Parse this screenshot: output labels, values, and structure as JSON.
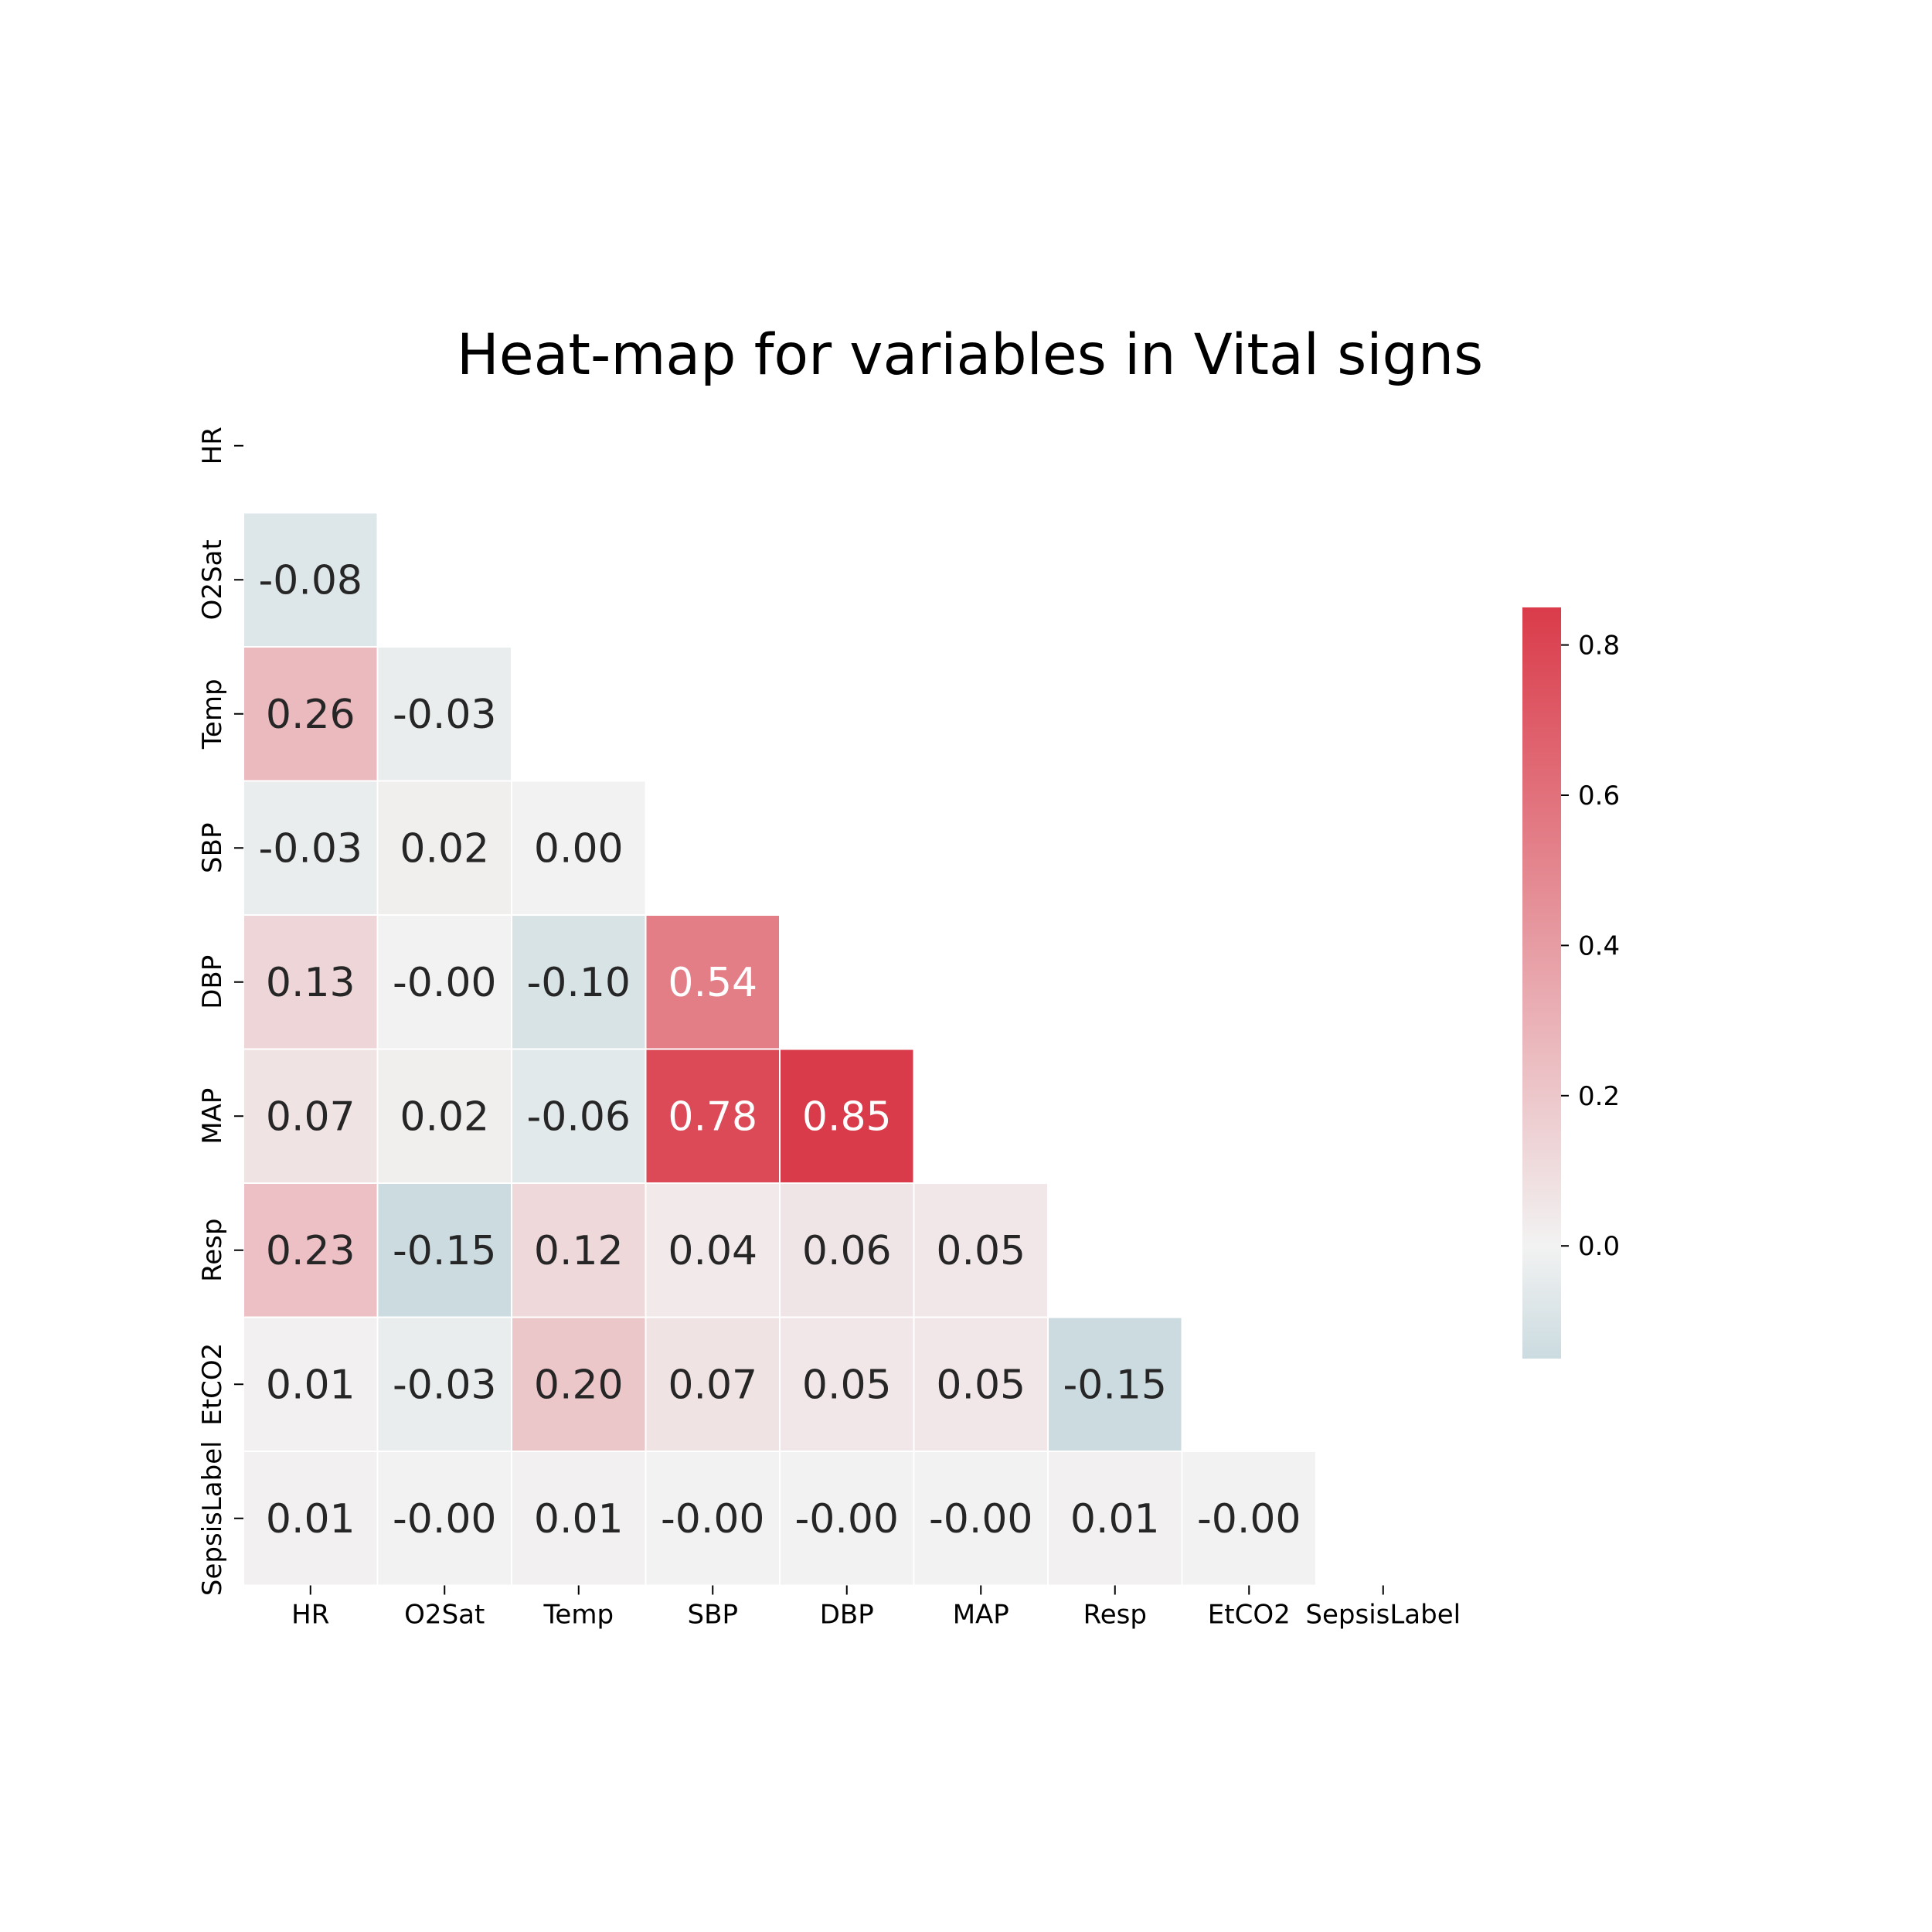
{
  "chart_data": {
    "type": "heatmap",
    "title": "Heat-map for variables in Vital signs",
    "variables": [
      "HR",
      "O2Sat",
      "Temp",
      "SBP",
      "DBP",
      "MAP",
      "Resp",
      "EtCO2",
      "SepsisLabel"
    ],
    "mask": "upper-triangle-including-diagonal",
    "cells": [
      {
        "row": "O2Sat",
        "col": "HR",
        "value": -0.08,
        "label": "-0.08"
      },
      {
        "row": "Temp",
        "col": "HR",
        "value": 0.26,
        "label": "0.26"
      },
      {
        "row": "Temp",
        "col": "O2Sat",
        "value": -0.03,
        "label": "-0.03"
      },
      {
        "row": "SBP",
        "col": "HR",
        "value": -0.03,
        "label": "-0.03"
      },
      {
        "row": "SBP",
        "col": "O2Sat",
        "value": 0.02,
        "label": "0.02"
      },
      {
        "row": "SBP",
        "col": "Temp",
        "value": 0.0,
        "label": "0.00"
      },
      {
        "row": "DBP",
        "col": "HR",
        "value": 0.13,
        "label": "0.13"
      },
      {
        "row": "DBP",
        "col": "O2Sat",
        "value": -0.0,
        "label": "-0.00"
      },
      {
        "row": "DBP",
        "col": "Temp",
        "value": -0.1,
        "label": "-0.10"
      },
      {
        "row": "DBP",
        "col": "SBP",
        "value": 0.54,
        "label": "0.54"
      },
      {
        "row": "MAP",
        "col": "HR",
        "value": 0.07,
        "label": "0.07"
      },
      {
        "row": "MAP",
        "col": "O2Sat",
        "value": 0.02,
        "label": "0.02"
      },
      {
        "row": "MAP",
        "col": "Temp",
        "value": -0.06,
        "label": "-0.06"
      },
      {
        "row": "MAP",
        "col": "SBP",
        "value": 0.78,
        "label": "0.78"
      },
      {
        "row": "MAP",
        "col": "DBP",
        "value": 0.85,
        "label": "0.85"
      },
      {
        "row": "Resp",
        "col": "HR",
        "value": 0.23,
        "label": "0.23"
      },
      {
        "row": "Resp",
        "col": "O2Sat",
        "value": -0.15,
        "label": "-0.15"
      },
      {
        "row": "Resp",
        "col": "Temp",
        "value": 0.12,
        "label": "0.12"
      },
      {
        "row": "Resp",
        "col": "SBP",
        "value": 0.04,
        "label": "0.04"
      },
      {
        "row": "Resp",
        "col": "DBP",
        "value": 0.06,
        "label": "0.06"
      },
      {
        "row": "Resp",
        "col": "MAP",
        "value": 0.05,
        "label": "0.05"
      },
      {
        "row": "EtCO2",
        "col": "HR",
        "value": 0.01,
        "label": "0.01"
      },
      {
        "row": "EtCO2",
        "col": "O2Sat",
        "value": -0.03,
        "label": "-0.03"
      },
      {
        "row": "EtCO2",
        "col": "Temp",
        "value": 0.2,
        "label": "0.20"
      },
      {
        "row": "EtCO2",
        "col": "SBP",
        "value": 0.07,
        "label": "0.07"
      },
      {
        "row": "EtCO2",
        "col": "DBP",
        "value": 0.05,
        "label": "0.05"
      },
      {
        "row": "EtCO2",
        "col": "MAP",
        "value": 0.05,
        "label": "0.05"
      },
      {
        "row": "EtCO2",
        "col": "Resp",
        "value": -0.15,
        "label": "-0.15"
      },
      {
        "row": "SepsisLabel",
        "col": "HR",
        "value": 0.01,
        "label": "0.01"
      },
      {
        "row": "SepsisLabel",
        "col": "O2Sat",
        "value": -0.0,
        "label": "-0.00"
      },
      {
        "row": "SepsisLabel",
        "col": "Temp",
        "value": 0.01,
        "label": "0.01"
      },
      {
        "row": "SepsisLabel",
        "col": "SBP",
        "value": -0.0,
        "label": "-0.00"
      },
      {
        "row": "SepsisLabel",
        "col": "DBP",
        "value": -0.0,
        "label": "-0.00"
      },
      {
        "row": "SepsisLabel",
        "col": "MAP",
        "value": -0.0,
        "label": "-0.00"
      },
      {
        "row": "SepsisLabel",
        "col": "Resp",
        "value": 0.01,
        "label": "0.01"
      },
      {
        "row": "SepsisLabel",
        "col": "EtCO2",
        "value": -0.0,
        "label": "-0.00"
      }
    ],
    "colorbar": {
      "range": [
        -0.15,
        0.85
      ],
      "ticks": [
        0.0,
        0.2,
        0.4,
        0.6,
        0.8
      ],
      "tick_labels": [
        "0.0",
        "0.2",
        "0.4",
        "0.6",
        "0.8"
      ],
      "colormap": "diverging blue-grey to red, centered at 0",
      "low_color": "#cbdbe0",
      "mid_color": "#f2f2f2",
      "high_color": "#da3b4a"
    },
    "legend_placement": "right",
    "grid": false
  }
}
